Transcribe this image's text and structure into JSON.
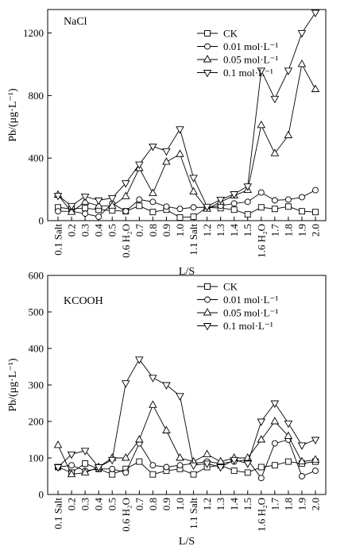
{
  "chart_data": [
    {
      "type": "line",
      "title": "NaCl",
      "xlabel": "L/S",
      "ylabel": "Pb/(μg·L⁻¹)",
      "ylim": [
        0,
        1350
      ],
      "yticks": [
        0,
        400,
        800,
        1200
      ],
      "categories": [
        "0.1 Salt",
        "0.2",
        "0.3",
        "0.4",
        "0.5",
        "0.6 H₂O",
        "0.7",
        "0.8",
        "0.9",
        "1.0",
        "1.1 Salt",
        "1.2",
        "1.3",
        "1.4",
        "1.5",
        "1.6 H₂O",
        "1.7",
        "1.8",
        "1.9",
        "2.0"
      ],
      "legend_position": "top-right",
      "series": [
        {
          "name": "CK",
          "marker": "square",
          "values": [
            85,
            75,
            80,
            70,
            65,
            60,
            95,
            55,
            70,
            20,
            25,
            85,
            80,
            70,
            40,
            85,
            75,
            90,
            60,
            55
          ]
        },
        {
          "name": "0.01 mol·L⁻¹",
          "marker": "circle",
          "values": [
            60,
            60,
            45,
            25,
            110,
            60,
            135,
            120,
            90,
            75,
            85,
            85,
            95,
            110,
            120,
            180,
            130,
            135,
            150,
            195
          ]
        },
        {
          "name": "0.05 mol·L⁻¹",
          "marker": "triangle-up",
          "values": [
            165,
            55,
            120,
            95,
            95,
            155,
            335,
            175,
            375,
            425,
            185,
            75,
            120,
            160,
            195,
            610,
            430,
            545,
            1000,
            840
          ]
        },
        {
          "name": "0.1 mol·L⁻¹",
          "marker": "triangle-down",
          "values": [
            160,
            95,
            155,
            130,
            145,
            240,
            360,
            475,
            445,
            585,
            275,
            90,
            135,
            170,
            220,
            960,
            780,
            960,
            1200,
            1330
          ]
        }
      ]
    },
    {
      "type": "line",
      "title": "KCOOH",
      "xlabel": "L/S",
      "ylabel": "Pb/(μg·L⁻¹)",
      "ylim": [
        0,
        600
      ],
      "yticks": [
        0,
        100,
        200,
        300,
        400,
        500,
        600
      ],
      "categories": [
        "0.1 Salt",
        "0.2",
        "0.3",
        "0.4",
        "0.5",
        "0.6 H₂O",
        "0.7",
        "0.8",
        "0.9",
        "1.0",
        "1.1 Salt",
        "1.2",
        "1.3",
        "1.4",
        "1.5",
        "1.6 H₂O",
        "1.7",
        "1.8",
        "1.9",
        "2.0"
      ],
      "legend_position": "top-right",
      "series": [
        {
          "name": "CK",
          "marker": "square",
          "values": [
            75,
            60,
            85,
            70,
            55,
            70,
            90,
            55,
            65,
            70,
            55,
            75,
            80,
            65,
            60,
            75,
            80,
            90,
            85,
            90
          ]
        },
        {
          "name": "0.01 mol·L⁻¹",
          "marker": "circle",
          "values": [
            75,
            80,
            65,
            70,
            70,
            60,
            140,
            80,
            75,
            80,
            85,
            90,
            85,
            90,
            95,
            45,
            140,
            150,
            50,
            65
          ]
        },
        {
          "name": "0.05 mol·L⁻¹",
          "marker": "triangle-up",
          "values": [
            135,
            55,
            60,
            75,
            100,
            100,
            150,
            245,
            175,
            100,
            90,
            110,
            90,
            100,
            100,
            150,
            200,
            160,
            90,
            95
          ]
        },
        {
          "name": "0.1 mol·L⁻¹",
          "marker": "triangle-down",
          "values": [
            75,
            110,
            120,
            75,
            95,
            305,
            370,
            320,
            300,
            270,
            80,
            85,
            75,
            95,
            85,
            200,
            250,
            195,
            135,
            150
          ]
        }
      ]
    }
  ]
}
